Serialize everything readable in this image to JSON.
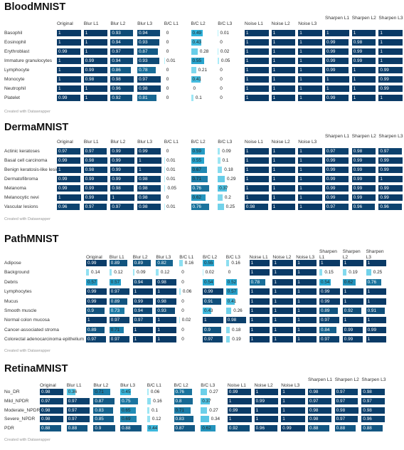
{
  "credit": "Created with Datawrapper",
  "colors": {
    "low": "#b9f3fb",
    "mid": "#2bb0d9",
    "high": "#0a3a66"
  },
  "chart_data": [
    {
      "type": "table",
      "title": "BloodMNIST",
      "columns": [
        "Original",
        "Blur L1",
        "Blur L2",
        "Blur L3",
        "B/C L1",
        "B/C L2",
        "B/C L3",
        "Noise L1",
        "Noise L2",
        "Noise L3",
        "Sharpen L1",
        "Sharpen L2",
        "Sharpen L3"
      ],
      "rows": [
        {
          "label": "Basophil",
          "values": [
            "1",
            "1",
            "0.93",
            "0.94",
            "0",
            "0.49",
            "0.01",
            "1",
            "1",
            "1",
            "1",
            "1",
            "1"
          ]
        },
        {
          "label": "Eosinophil",
          "values": [
            "1",
            "1",
            "0.94",
            "0.93",
            "0",
            "0.43",
            "0",
            "1",
            "1",
            "1",
            "0.99",
            "0.98",
            "1"
          ]
        },
        {
          "label": "Erythroblast",
          "values": [
            "0.99",
            "1",
            "0.97",
            "0.87",
            "0",
            "0.28",
            "0.02",
            "1",
            "1",
            "1",
            "0.99",
            "0.99",
            "1"
          ]
        },
        {
          "label": "Immature granulocytes",
          "values": [
            "1",
            "0.99",
            "0.94",
            "0.93",
            "0.01",
            "0.55",
            "0.05",
            "1",
            "1",
            "1",
            "0.99",
            "0.99",
            "1"
          ]
        },
        {
          "label": "Lymphocyte",
          "values": [
            "1",
            "0.99",
            "0.86",
            "0.78",
            "0",
            "0.21",
            "0",
            "1",
            "1",
            "1",
            "0.99",
            "1",
            "0.99"
          ]
        },
        {
          "label": "Monocyte",
          "values": [
            "1",
            "0.98",
            "0.98",
            "0.97",
            "0",
            "0.41",
            "0",
            "1",
            "1",
            "1",
            "1",
            "1",
            "0.99"
          ]
        },
        {
          "label": "Neutrophil",
          "values": [
            "1",
            "1",
            "0.96",
            "0.98",
            "0",
            "0",
            "0",
            "1",
            "1",
            "1",
            "1",
            "1",
            "0.99"
          ]
        },
        {
          "label": "Platelet",
          "values": [
            "0.99",
            "1",
            "0.92",
            "0.81",
            "0",
            "0.1",
            "0",
            "1",
            "1",
            "1",
            "0.99",
            "1",
            "1"
          ]
        }
      ]
    },
    {
      "type": "table",
      "title": "DermaMNIST",
      "columns": [
        "Original",
        "Blur L1",
        "Blur L2",
        "Blur L3",
        "B/C L1",
        "B/C L2",
        "B/C L3",
        "Noise L1",
        "Noise L2",
        "Noise L3",
        "Sharpen L1",
        "Sharpen L2",
        "Sharpen L3"
      ],
      "rows": [
        {
          "label": "Actinic keratoses",
          "values": [
            "0.97",
            "0.97",
            "0.99",
            "0.99",
            "0",
            "0.59",
            "0.09",
            "1",
            "1",
            "1",
            "0.97",
            "0.98",
            "0.97"
          ]
        },
        {
          "label": "Basal cell carcinoma",
          "values": [
            "0.99",
            "0.98",
            "0.99",
            "1",
            "0.01",
            "0.55",
            "0.1",
            "1",
            "1",
            "1",
            "0.99",
            "0.99",
            "0.99"
          ]
        },
        {
          "label": "Benign keratosis-like lesions",
          "values": [
            "1",
            "0.98",
            "0.99",
            "1",
            "0.01",
            "0.67",
            "0.18",
            "1",
            "1",
            "1",
            "0.99",
            "0.99",
            "0.99"
          ]
        },
        {
          "label": "Dermatofibroma",
          "values": [
            "0.99",
            "0.99",
            "0.99",
            "0.98",
            "0.01",
            "0.71",
            "0.29",
            "1",
            "1",
            "1",
            "0.99",
            "0.99",
            "1"
          ]
        },
        {
          "label": "Melanoma",
          "values": [
            "0.99",
            "0.99",
            "0.98",
            "0.98",
            "0.05",
            "0.76",
            "0.37",
            "1",
            "1",
            "1",
            "0.99",
            "0.99",
            "0.99"
          ]
        },
        {
          "label": "Melanocytic nevi",
          "values": [
            "1",
            "0.99",
            "1",
            "0.98",
            "0",
            "0.62",
            "0.2",
            "1",
            "1",
            "1",
            "0.99",
            "0.99",
            "0.99"
          ]
        },
        {
          "label": "Vascular lesions",
          "values": [
            "0.96",
            "0.97",
            "0.97",
            "0.98",
            "0.01",
            "0.76",
            "0.25",
            "0.98",
            "1",
            "1",
            "0.97",
            "0.96",
            "0.96"
          ]
        }
      ]
    },
    {
      "type": "table",
      "title": "PathMNIST",
      "columns": [
        "Original",
        "Blur L1",
        "Blur L2",
        "Blur L3",
        "B/C L1",
        "B/C L2",
        "B/C L3",
        "Noise L1",
        "Noise L2",
        "Noise L3",
        "Sharpen L1",
        "Sharpen L2",
        "Sharpen L3"
      ],
      "rows": [
        {
          "label": "Adipose",
          "values": [
            "0.99",
            "0.89",
            "0.89",
            "0.82",
            "0.16",
            "0.55",
            "0.16",
            "1",
            "1",
            "1",
            "1",
            "1",
            "1"
          ]
        },
        {
          "label": "Background",
          "values": [
            "0.14",
            "0.12",
            "0.09",
            "0.12",
            "0",
            "0.02",
            "0",
            "1",
            "1",
            "1",
            "0.15",
            "0.19",
            "0.25"
          ]
        },
        {
          "label": "Debris",
          "values": [
            "0.57",
            "0.57",
            "0.94",
            "0.98",
            "0",
            "0.54",
            "0.52",
            "0.78",
            "1",
            "1",
            "0.54",
            "0.62",
            "0.76"
          ]
        },
        {
          "label": "Lymphocytes",
          "values": [
            "0.99",
            "0.97",
            "1",
            "1",
            "0.06",
            "0.99",
            "0.57",
            "1",
            "1",
            "1",
            "0.99",
            "1",
            "1"
          ]
        },
        {
          "label": "Mucus",
          "values": [
            "0.99",
            "0.89",
            "0.99",
            "0.98",
            "0",
            "0.91",
            "0.41",
            "1",
            "1",
            "1",
            "0.99",
            "1",
            "1"
          ]
        },
        {
          "label": "Smooth muscle",
          "values": [
            "0.9",
            "0.73",
            "0.94",
            "0.93",
            "0",
            "0.43",
            "0.26",
            "1",
            "1",
            "1",
            "0.89",
            "0.92",
            "0.91"
          ]
        },
        {
          "label": "Normal colon mucosa",
          "values": [
            "1",
            "0.97",
            "0.97",
            "1",
            "0.02",
            "1",
            "0.98",
            "1",
            "1",
            "1",
            "0.97",
            "1",
            "1"
          ]
        },
        {
          "label": "Cancer-associated stroma",
          "values": [
            "0.89",
            "0.71",
            "1",
            "1",
            "0",
            "0.9",
            "0.18",
            "1",
            "1",
            "1",
            "0.84",
            "0.99",
            "0.99"
          ]
        },
        {
          "label": "Colorectal adenocarcinoma epithelium",
          "values": [
            "0.97",
            "0.97",
            "1",
            "1",
            "0",
            "0.97",
            "0.19",
            "1",
            "1",
            "1",
            "0.97",
            "0.99",
            "1"
          ]
        }
      ]
    },
    {
      "type": "table",
      "title": "RetinaMNIST",
      "columns": [
        "Original",
        "Blur L1",
        "Blur L2",
        "Blur L3",
        "B/C L1",
        "B/C L2",
        "B/C L3",
        "Noise L1",
        "Noise L2",
        "Noise L3",
        "Sharpen L1",
        "Sharpen L2",
        "Sharpen L3"
      ],
      "rows": [
        {
          "label": "No_DR",
          "values": [
            "0.98",
            "0.36",
            "0.71",
            "0.45",
            "0.06",
            "0.76",
            "0.27",
            "0.99",
            "1",
            "1",
            "0.98",
            "0.97",
            "0.98"
          ]
        },
        {
          "label": "Mild_NPDR",
          "values": [
            "0.97",
            "0.97",
            "0.87",
            "0.75",
            "0.16",
            "0.8",
            "0.37",
            "1",
            "0.99",
            "1",
            "0.97",
            "0.97",
            "0.97"
          ]
        },
        {
          "label": "Moderate_NPDR",
          "values": [
            "0.98",
            "0.97",
            "0.83",
            "0.65",
            "0.1",
            "0.71",
            "0.27",
            "0.99",
            "1",
            "1",
            "0.98",
            "0.98",
            "0.98"
          ]
        },
        {
          "label": "Severe_NPDR",
          "values": [
            "0.98",
            "0.97",
            "0.85",
            "0.69",
            "0.12",
            "0.83",
            "0.34",
            "1",
            "1",
            "1",
            "0.98",
            "0.97",
            "0.96"
          ]
        },
        {
          "label": "PDR",
          "values": [
            "0.88",
            "0.88",
            "0.9",
            "0.88",
            "0.44",
            "0.87",
            "0.62",
            "0.92",
            "0.96",
            "0.99",
            "0.88",
            "0.88",
            "0.88"
          ]
        }
      ]
    }
  ]
}
